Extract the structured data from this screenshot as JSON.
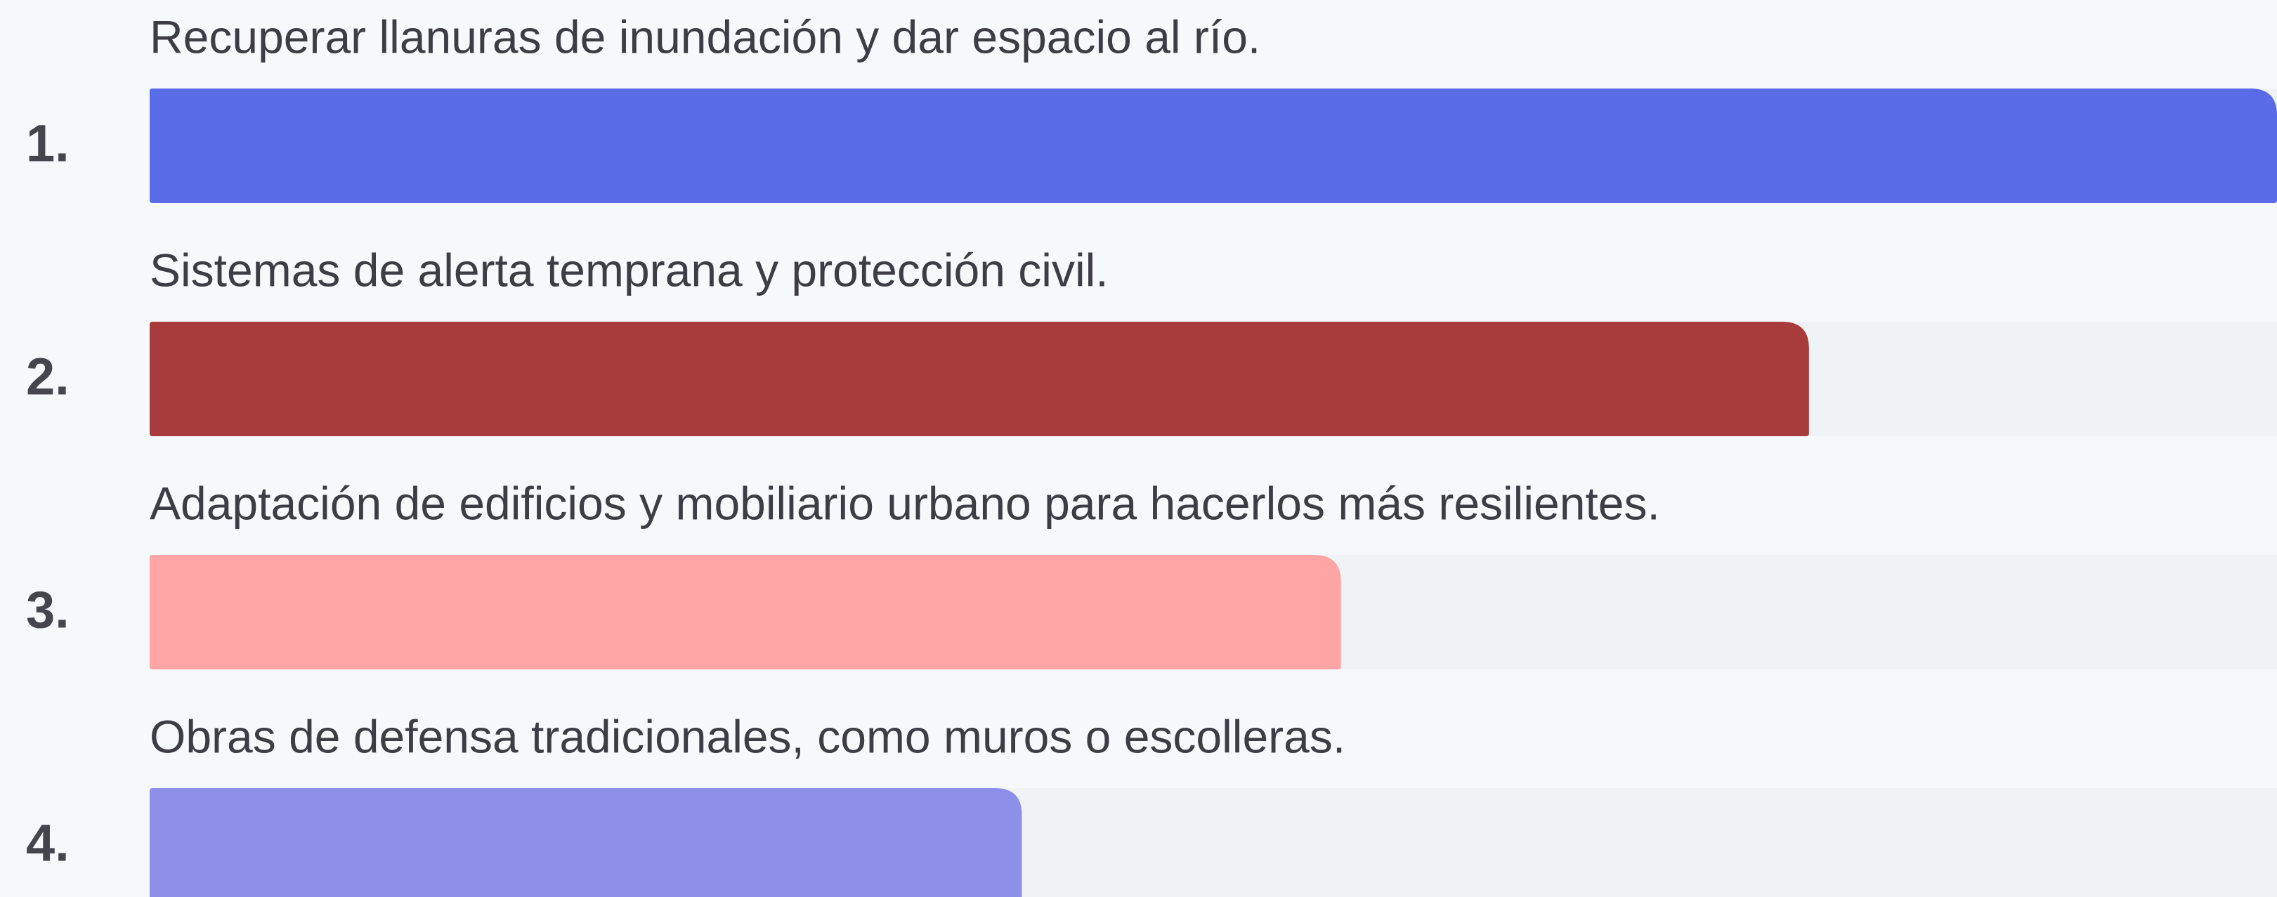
{
  "chart_data": {
    "type": "bar",
    "ranks": [
      "1.",
      "2.",
      "3.",
      "4."
    ],
    "categories": [
      "Recuperar llanuras de inundación y dar espacio al río.",
      "Sistemas de alerta temprana y protección civil.",
      "Adaptación de edificios y mobiliario urbano para hacerlos más resilientes.",
      "Obras de defensa tradicionales, como muros o escolleras."
    ],
    "values": [
      100,
      78,
      56,
      41
    ],
    "colors": [
      "#5a6be8",
      "#a83b3b",
      "#ffa5a5",
      "#8d8fe8"
    ],
    "xlim": [
      0,
      100
    ]
  }
}
